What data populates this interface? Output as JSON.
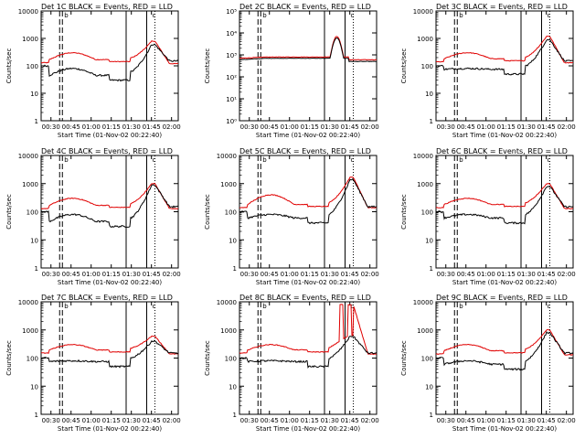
{
  "figure": {
    "xlabel": "Start Time (01-Nov-02 00:22:40)",
    "ylabel": "Counts/sec"
  },
  "chart_data": [
    {
      "type": "line",
      "title": "Det 1C BLACK = Events, RED = LLD",
      "ylabel": "Counts/sec",
      "xlabel": "Start Time (01-Nov-02 00:22:40)",
      "xlim": [
        "00:22:40",
        "02:05"
      ],
      "ylim": [
        1,
        10000
      ],
      "yscale": "log",
      "ytick_style": "plain",
      "yticks": [
        "1",
        "10",
        "100",
        "1000",
        "10000"
      ],
      "xticks": [
        "00:30",
        "00:45",
        "01:00",
        "01:15",
        "01:30",
        "01:45",
        "02:00"
      ],
      "markers": {
        "a_labels": [
          "a",
          "b"
        ],
        "c_label": "c"
      },
      "profile": "normal",
      "series": [
        {
          "name": "Events",
          "color": "#000000",
          "values": {
            "start": 100,
            "quiet": 30,
            "peak": 600,
            "end": 150
          }
        },
        {
          "name": "LLD",
          "color": "#e00000",
          "values": {
            "start": 130,
            "hump": 300,
            "peak": 800,
            "end": 120
          }
        }
      ]
    },
    {
      "type": "line",
      "title": "Det 2C BLACK = Events, RED = LLD",
      "ylabel": "Counts/sec",
      "xlabel": "Start Time (01-Nov-02 00:22:40)",
      "xlim": [
        "00:22:40",
        "02:05"
      ],
      "ylim": [
        1,
        100000
      ],
      "yscale": "log",
      "ytick_style": "power",
      "yticks": [
        "10⁰",
        "10¹",
        "10²",
        "10³",
        "10⁴",
        "10⁵"
      ],
      "xticks": [
        "00:30",
        "00:45",
        "01:00",
        "01:15",
        "01:30",
        "01:45",
        "02:00"
      ],
      "markers": {
        "a_labels": [
          "a",
          "b"
        ],
        "c_label": "c"
      },
      "profile": "flat",
      "series": [
        {
          "name": "Events",
          "color": "#000000",
          "values": {
            "start": 600,
            "quiet": 700,
            "peak": 6000,
            "end": 500
          }
        },
        {
          "name": "LLD",
          "color": "#e00000",
          "values": {
            "start": 700,
            "quiet": 800,
            "peak": 7000,
            "end": 600
          }
        }
      ]
    },
    {
      "type": "line",
      "title": "Det 3C BLACK = Events, RED = LLD",
      "ylabel": "Counts/sec",
      "xlabel": "Start Time (01-Nov-02 00:22:40)",
      "xlim": [
        "00:22:40",
        "02:05"
      ],
      "ylim": [
        1,
        10000
      ],
      "yscale": "log",
      "ytick_style": "plain",
      "yticks": [
        "1",
        "10",
        "100",
        "1000",
        "10000"
      ],
      "xticks": [
        "00:30",
        "00:45",
        "01:00",
        "01:15",
        "01:30",
        "01:45",
        "02:00"
      ],
      "markers": {
        "a_labels": [
          "a",
          "b"
        ],
        "c_label": "c"
      },
      "profile": "normal",
      "series": [
        {
          "name": "Events",
          "color": "#000000",
          "values": {
            "start": 100,
            "quiet": 50,
            "peak": 900,
            "end": 150
          }
        },
        {
          "name": "LLD",
          "color": "#e00000",
          "values": {
            "start": 140,
            "hump": 300,
            "peak": 1200,
            "end": 130
          }
        }
      ]
    },
    {
      "type": "line",
      "title": "Det 4C BLACK = Events, RED = LLD",
      "ylabel": "Counts/sec",
      "xlabel": "Start Time (01-Nov-02 00:22:40)",
      "xlim": [
        "00:22:40",
        "02:05"
      ],
      "ylim": [
        1,
        10000
      ],
      "yscale": "log",
      "ytick_style": "plain",
      "yticks": [
        "1",
        "10",
        "100",
        "1000",
        "10000"
      ],
      "xticks": [
        "00:30",
        "00:45",
        "01:00",
        "01:15",
        "01:30",
        "01:45",
        "02:00"
      ],
      "markers": {
        "a_labels": [
          "a",
          "b"
        ],
        "c_label": "c"
      },
      "profile": "normal",
      "series": [
        {
          "name": "Events",
          "color": "#000000",
          "values": {
            "start": 100,
            "quiet": 30,
            "peak": 900,
            "end": 150
          }
        },
        {
          "name": "LLD",
          "color": "#e00000",
          "values": {
            "start": 130,
            "hump": 300,
            "peak": 1000,
            "end": 130
          }
        }
      ]
    },
    {
      "type": "line",
      "title": "Det 5C BLACK = Events, RED = LLD",
      "ylabel": "Counts/sec",
      "xlabel": "Start Time (01-Nov-02 00:22:40)",
      "xlim": [
        "00:22:40",
        "02:05"
      ],
      "ylim": [
        1,
        10000
      ],
      "yscale": "log",
      "ytick_style": "plain",
      "yticks": [
        "1",
        "10",
        "100",
        "1000",
        "10000"
      ],
      "xticks": [
        "00:30",
        "00:45",
        "01:00",
        "01:15",
        "01:30",
        "01:45",
        "02:00"
      ],
      "markers": {
        "a_labels": [
          "a",
          "b"
        ],
        "c_label": "c"
      },
      "profile": "normal",
      "series": [
        {
          "name": "Events",
          "color": "#000000",
          "values": {
            "start": 100,
            "quiet": 40,
            "peak": 1400,
            "end": 150
          }
        },
        {
          "name": "LLD",
          "color": "#e00000",
          "values": {
            "start": 140,
            "hump": 400,
            "peak": 1700,
            "end": 140
          }
        }
      ]
    },
    {
      "type": "line",
      "title": "Det 6C BLACK = Events, RED = LLD",
      "ylabel": "Counts/sec",
      "xlabel": "Start Time (01-Nov-02 00:22:40)",
      "xlim": [
        "00:22:40",
        "02:05"
      ],
      "ylim": [
        1,
        10000
      ],
      "yscale": "log",
      "ytick_style": "plain",
      "yticks": [
        "1",
        "10",
        "100",
        "1000",
        "10000"
      ],
      "xticks": [
        "00:30",
        "00:45",
        "01:00",
        "01:15",
        "01:30",
        "01:45",
        "02:00"
      ],
      "markers": {
        "a_labels": [
          "a",
          "b"
        ],
        "c_label": "c"
      },
      "profile": "normal",
      "series": [
        {
          "name": "Events",
          "color": "#000000",
          "values": {
            "start": 100,
            "quiet": 40,
            "peak": 800,
            "end": 150
          }
        },
        {
          "name": "LLD",
          "color": "#e00000",
          "values": {
            "start": 140,
            "hump": 300,
            "peak": 1000,
            "end": 130
          }
        }
      ]
    },
    {
      "type": "line",
      "title": "Det 7C BLACK = Events, RED = LLD",
      "ylabel": "Counts/sec",
      "xlabel": "Start Time (01-Nov-02 00:22:40)",
      "xlim": [
        "00:22:40",
        "02:05"
      ],
      "ylim": [
        1,
        10000
      ],
      "yscale": "log",
      "ytick_style": "plain",
      "yticks": [
        "1",
        "10",
        "100",
        "1000",
        "10000"
      ],
      "xticks": [
        "00:30",
        "00:45",
        "01:00",
        "01:15",
        "01:30",
        "01:45",
        "02:00"
      ],
      "markers": {
        "a_labels": [
          "a",
          "b"
        ],
        "c_label": "c"
      },
      "profile": "normal",
      "series": [
        {
          "name": "Events",
          "color": "#000000",
          "values": {
            "start": 100,
            "quiet": 50,
            "peak": 400,
            "end": 150
          }
        },
        {
          "name": "LLD",
          "color": "#e00000",
          "values": {
            "start": 150,
            "hump": 300,
            "peak": 600,
            "end": 140
          }
        }
      ]
    },
    {
      "type": "line",
      "title": "Det 8C BLACK = Events, RED = LLD",
      "ylabel": "Counts/sec",
      "xlabel": "Start Time (01-Nov-02 00:22:40)",
      "xlim": [
        "00:22:40",
        "02:05"
      ],
      "ylim": [
        1,
        10000
      ],
      "yscale": "log",
      "ytick_style": "plain",
      "yticks": [
        "1",
        "10",
        "100",
        "1000",
        "10000"
      ],
      "xticks": [
        "00:30",
        "00:45",
        "01:00",
        "01:15",
        "01:30",
        "01:45",
        "02:00"
      ],
      "markers": {
        "a_labels": [
          "a",
          "b"
        ],
        "c_label": "c"
      },
      "profile": "spiky",
      "series": [
        {
          "name": "Events",
          "color": "#000000",
          "values": {
            "start": 100,
            "quiet": 50,
            "peak": 600,
            "end": 150
          }
        },
        {
          "name": "LLD",
          "color": "#e00000",
          "values": {
            "start": 150,
            "hump": 300,
            "peak": 8000,
            "end": 140
          }
        }
      ]
    },
    {
      "type": "line",
      "title": "Det 9C BLACK = Events, RED = LLD",
      "ylabel": "Counts/sec",
      "xlabel": "Start Time (01-Nov-02 00:22:40)",
      "xlim": [
        "00:22:40",
        "02:05"
      ],
      "ylim": [
        1,
        10000
      ],
      "yscale": "log",
      "ytick_style": "plain",
      "yticks": [
        "1",
        "10",
        "100",
        "1000",
        "10000"
      ],
      "xticks": [
        "00:30",
        "00:45",
        "01:00",
        "01:15",
        "01:30",
        "01:45",
        "02:00"
      ],
      "markers": {
        "a_labels": [
          "a",
          "b"
        ],
        "c_label": "c"
      },
      "profile": "normal",
      "series": [
        {
          "name": "Events",
          "color": "#000000",
          "values": {
            "start": 100,
            "quiet": 40,
            "peak": 800,
            "end": 150
          }
        },
        {
          "name": "LLD",
          "color": "#e00000",
          "values": {
            "start": 140,
            "hump": 300,
            "peak": 1000,
            "end": 130
          }
        }
      ]
    }
  ]
}
